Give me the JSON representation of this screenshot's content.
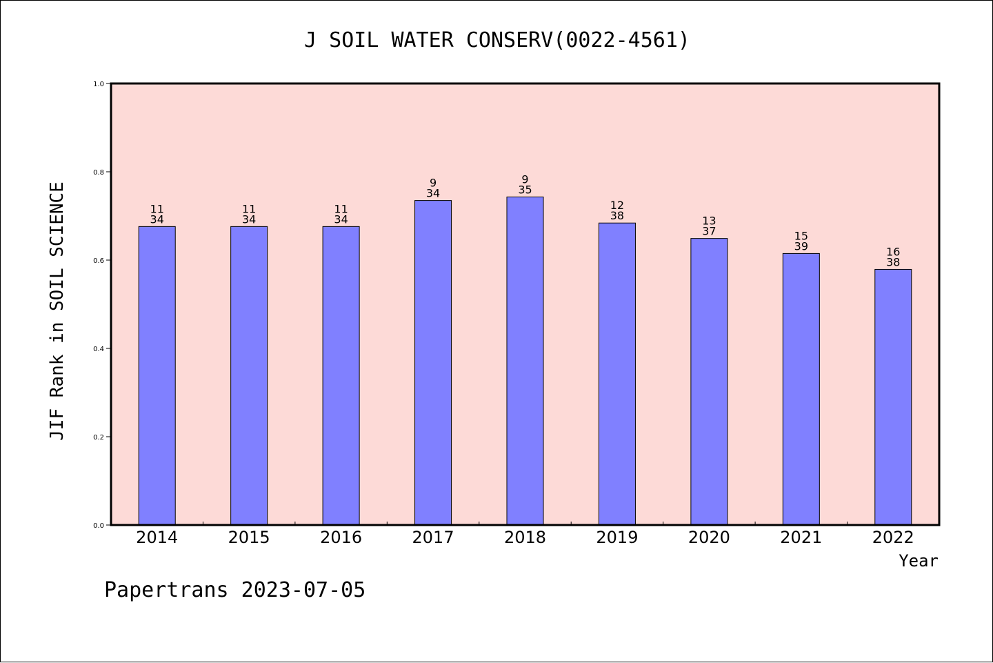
{
  "chart_data": {
    "type": "bar",
    "title": "J SOIL WATER CONSERV(0022-4561)",
    "xlabel": "Year",
    "ylabel": "JIF Rank in SOIL SCIENCE",
    "ylim": [
      0,
      1.0
    ],
    "yticks": [
      "0.0",
      "0.2",
      "0.4",
      "0.6",
      "0.8",
      "1.0"
    ],
    "grid": false,
    "categories": [
      "2014",
      "2015",
      "2016",
      "2017",
      "2018",
      "2019",
      "2020",
      "2021",
      "2022"
    ],
    "values": [
      0.676,
      0.676,
      0.676,
      0.735,
      0.743,
      0.684,
      0.649,
      0.615,
      0.579
    ],
    "rank_labels": [
      {
        "rank": "11",
        "total": "34"
      },
      {
        "rank": "11",
        "total": "34"
      },
      {
        "rank": "11",
        "total": "34"
      },
      {
        "rank": "9",
        "total": "34"
      },
      {
        "rank": "9",
        "total": "35"
      },
      {
        "rank": "12",
        "total": "38"
      },
      {
        "rank": "13",
        "total": "37"
      },
      {
        "rank": "15",
        "total": "39"
      },
      {
        "rank": "16",
        "total": "38"
      }
    ],
    "colors": {
      "plot_background": "#fddad7",
      "bar_fill": "#8080ff",
      "bar_stroke": "#000000"
    }
  },
  "footer": {
    "text": "Papertrans 2023-07-05"
  }
}
